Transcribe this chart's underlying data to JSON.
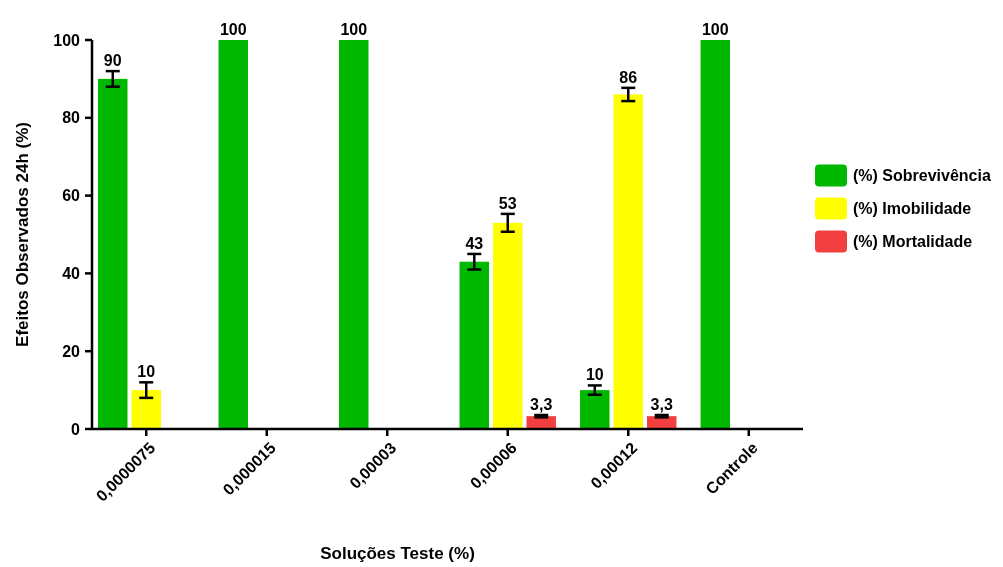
{
  "chart_data": {
    "type": "bar",
    "xlabel": "Soluções Teste (%)",
    "ylabel": "Efeitos Observados 24h (%)",
    "categories": [
      "0,0000075",
      "0,000015",
      "0,00003",
      "0,00006",
      "0,00012",
      "Controle"
    ],
    "series": [
      {
        "name": "(%) Sobrevivência",
        "color": "#00b800",
        "values": [
          90,
          100,
          100,
          43,
          10,
          100
        ],
        "errors": [
          2,
          null,
          null,
          2,
          1.2,
          null
        ],
        "value_labels": [
          "90",
          "100",
          "100",
          "43",
          "10",
          "100"
        ]
      },
      {
        "name": "(%) Imobilidade",
        "color": "#ffff00",
        "values": [
          10,
          null,
          null,
          53,
          86,
          null
        ],
        "errors": [
          2,
          null,
          null,
          2.3,
          1.7,
          null
        ],
        "value_labels": [
          "10",
          null,
          null,
          "53",
          "86",
          null
        ]
      },
      {
        "name": "(%) Mortalidade",
        "color": "#f24040",
        "values": [
          null,
          null,
          null,
          3.3,
          3.3,
          null
        ],
        "errors": [
          null,
          null,
          null,
          0.3,
          0.3,
          null
        ],
        "value_labels": [
          null,
          null,
          null,
          "3,3",
          "3,3",
          null
        ]
      }
    ],
    "ylim": [
      0,
      100
    ],
    "yticks": [
      0,
      20,
      40,
      60,
      80,
      100
    ],
    "grid": false,
    "legend": "right"
  }
}
